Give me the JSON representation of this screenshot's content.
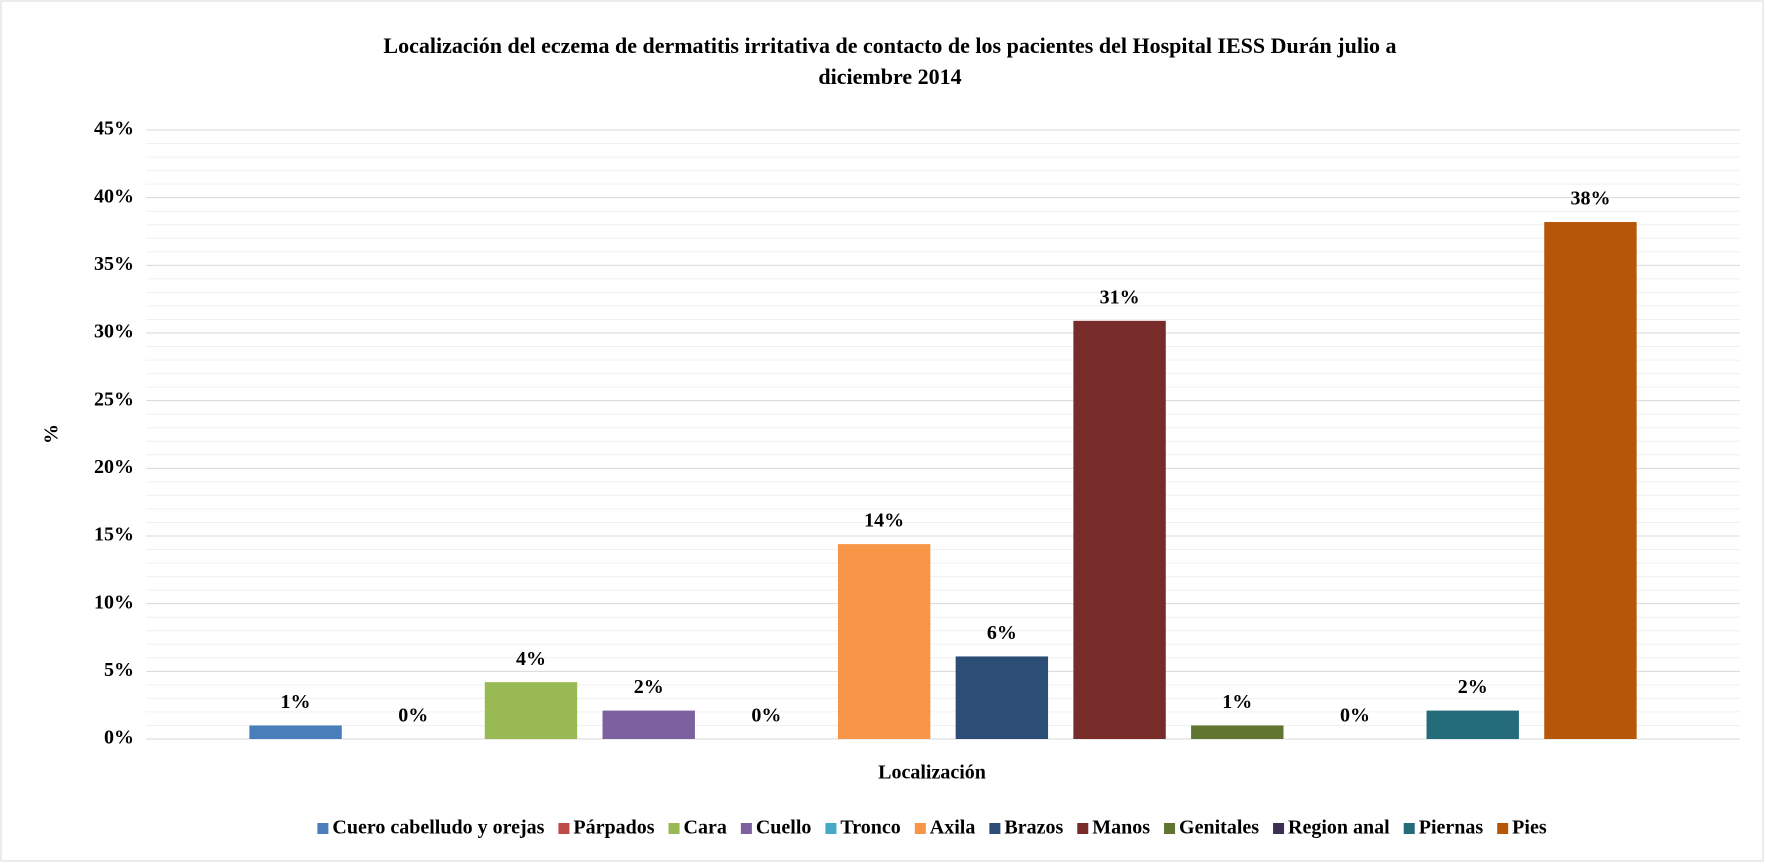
{
  "chart_data": {
    "type": "bar",
    "title": "Localización del eczema de dermatitis irritativa de contacto de los pacientes del Hospital IESS Durán  julio a",
    "subtitle": "diciembre  2014",
    "x_label": "Localización",
    "y_label": "%",
    "categories": [
      null
    ],
    "series": [
      {
        "name": "Cuero cabelludo y orejas",
        "color": "#4a7ebb",
        "values": [
          1.0
        ],
        "value_labels": [
          "1%"
        ]
      },
      {
        "name": "Párpados",
        "color": "#be4b48",
        "values": [
          0
        ],
        "value_labels": [
          "0%"
        ]
      },
      {
        "name": "Cara",
        "color": "#98b954",
        "values": [
          4.2
        ],
        "value_labels": [
          "4%"
        ]
      },
      {
        "name": "Cuello",
        "color": "#7d60a0",
        "values": [
          2.1
        ],
        "value_labels": [
          "2%"
        ]
      },
      {
        "name": "Tronco",
        "color": "#46aac5",
        "values": [
          0
        ],
        "value_labels": [
          "0%"
        ]
      },
      {
        "name": "Axila",
        "color": "#f79646",
        "values": [
          14.4
        ],
        "value_labels": [
          "14%"
        ]
      },
      {
        "name": "Brazos",
        "color": "#2c4d75",
        "values": [
          6.1
        ],
        "value_labels": [
          "6%"
        ]
      },
      {
        "name": "Manos",
        "color": "#772c2a",
        "values": [
          30.9
        ],
        "value_labels": [
          "31%"
        ]
      },
      {
        "name": "Genitales",
        "color": "#5f7530",
        "values": [
          1.0
        ],
        "value_labels": [
          "1%"
        ]
      },
      {
        "name": "Region anal",
        "color": "#3d2f52",
        "values": [
          0
        ],
        "value_labels": [
          "0%"
        ]
      },
      {
        "name": "Piernas",
        "color": "#256c7a",
        "values": [
          2.1
        ],
        "value_labels": [
          "2%"
        ]
      },
      {
        "name": "Pies",
        "color": "#b65708",
        "values": [
          38.2
        ],
        "value_labels": [
          "38%"
        ]
      }
    ],
    "ylim": [
      0,
      45
    ],
    "yticks": [
      {
        "value": 0,
        "label": "0%"
      },
      {
        "value": 5,
        "label": "5%"
      },
      {
        "value": 10,
        "label": "10%"
      },
      {
        "value": 15,
        "label": "15%"
      },
      {
        "value": 20,
        "label": "20%"
      },
      {
        "value": 25,
        "label": "25%"
      },
      {
        "value": 30,
        "label": "30%"
      },
      {
        "value": 35,
        "label": "35%"
      },
      {
        "value": 40,
        "label": "40%"
      },
      {
        "value": 45,
        "label": "45%"
      }
    ],
    "grid": true,
    "minor_grid_divisions": 5,
    "legend": "bottom"
  }
}
